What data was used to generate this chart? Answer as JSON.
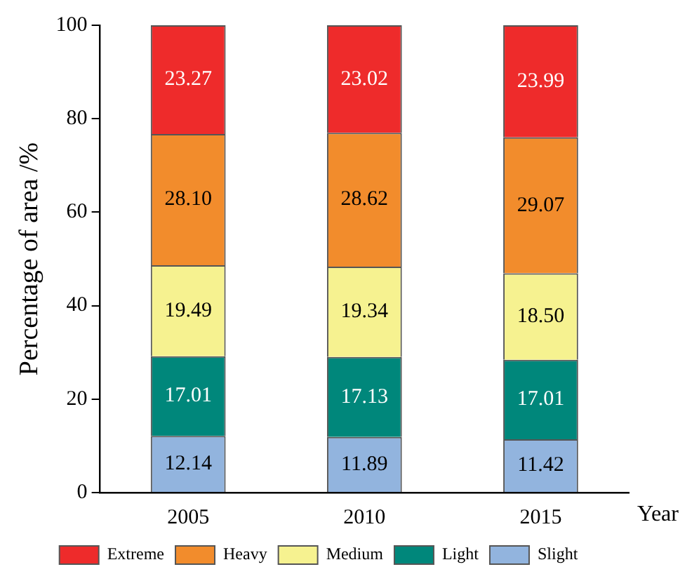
{
  "chart_data": {
    "type": "bar",
    "stacked": true,
    "categories": [
      "2005",
      "2010",
      "2015"
    ],
    "xlabel": "Year",
    "ylabel": "Percentage of area /%",
    "ylim": [
      0,
      100
    ],
    "yticks": [
      0,
      20,
      40,
      60,
      80,
      100
    ],
    "grid": false,
    "legend": "bottom",
    "series": [
      {
        "name": "Slight",
        "color": "#92b4de",
        "values": [
          12.14,
          11.89,
          11.42
        ],
        "value_labels": [
          "12.14",
          "11.89",
          "11.42"
        ]
      },
      {
        "name": "Light",
        "color": "#00877b",
        "values": [
          17.01,
          17.13,
          17.01
        ],
        "value_labels": [
          "17.01",
          "17.13",
          "17.01"
        ]
      },
      {
        "name": "Medium",
        "color": "#f6f290",
        "values": [
          19.49,
          19.34,
          18.5
        ],
        "value_labels": [
          "19.49",
          "19.34",
          "18.50"
        ]
      },
      {
        "name": "Heavy",
        "color": "#f28c2c",
        "values": [
          28.1,
          28.62,
          29.07
        ],
        "value_labels": [
          "28.10",
          "28.62",
          "29.07"
        ]
      },
      {
        "name": "Extreme",
        "color": "#ee2b2b",
        "values": [
          23.27,
          23.02,
          23.99
        ],
        "value_labels": [
          "23.27",
          "23.02",
          "23.99"
        ]
      }
    ]
  }
}
